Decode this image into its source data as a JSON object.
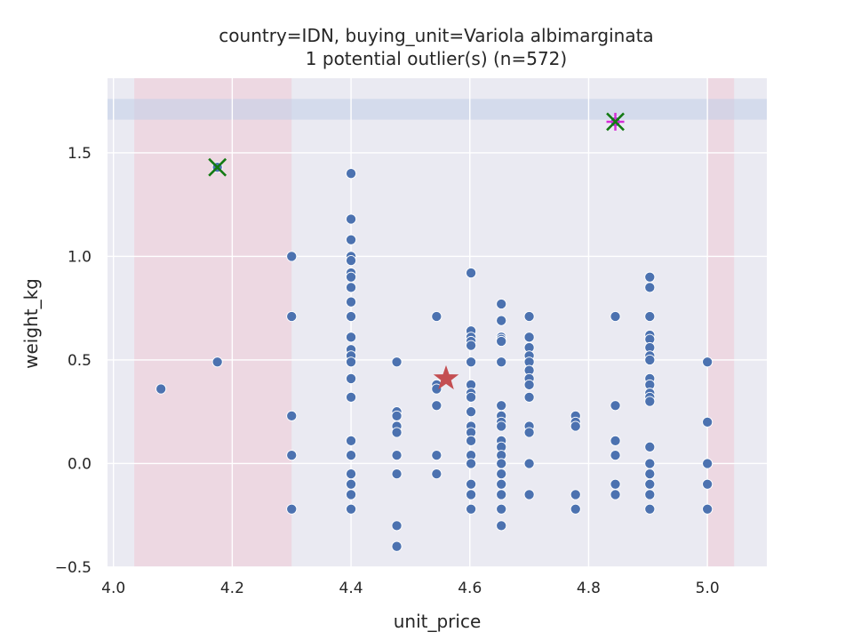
{
  "chart_data": {
    "type": "scatter",
    "title_line1": "country=IDN, buying_unit=Variola albimarginata",
    "title_line2": "1 potential outlier(s) (n=572)",
    "xlabel": "unit_price",
    "ylabel": "weight_kg",
    "xlim": [
      3.99,
      5.1
    ],
    "ylim": [
      -0.5,
      1.86
    ],
    "xticks": [
      "4.0",
      "4.2",
      "4.4",
      "4.6",
      "4.8",
      "5.0"
    ],
    "xtick_values": [
      4.0,
      4.2,
      4.4,
      4.6,
      4.8,
      5.0
    ],
    "yticks": [
      "−0.5",
      "0.0",
      "0.5",
      "1.0",
      "1.5"
    ],
    "ytick_values": [
      -0.5,
      0.0,
      0.5,
      1.0,
      1.5
    ],
    "grid": true,
    "background_color": "#eaeaf2",
    "point_color": "#4c72b0",
    "shaded_bands": {
      "vertical": [
        [
          4.035,
          4.3
        ],
        [
          5.0,
          5.045
        ]
      ],
      "horizontal": [
        [
          1.66,
          1.76
        ]
      ],
      "vertical_color": "#f2c4cf",
      "horizontal_color": "#c5d0e8"
    },
    "points": [
      [
        4.08,
        0.36
      ],
      [
        4.175,
        0.49
      ],
      [
        4.175,
        1.43
      ],
      [
        4.3,
        1.0
      ],
      [
        4.3,
        0.71
      ],
      [
        4.3,
        0.23
      ],
      [
        4.3,
        0.04
      ],
      [
        4.3,
        -0.22
      ],
      [
        4.4,
        1.4
      ],
      [
        4.4,
        1.18
      ],
      [
        4.4,
        1.08
      ],
      [
        4.4,
        1.0
      ],
      [
        4.4,
        0.98
      ],
      [
        4.4,
        0.92
      ],
      [
        4.4,
        0.9
      ],
      [
        4.4,
        0.85
      ],
      [
        4.4,
        0.78
      ],
      [
        4.4,
        0.71
      ],
      [
        4.4,
        0.61
      ],
      [
        4.4,
        0.55
      ],
      [
        4.4,
        0.52
      ],
      [
        4.4,
        0.49
      ],
      [
        4.4,
        0.41
      ],
      [
        4.4,
        0.32
      ],
      [
        4.4,
        0.11
      ],
      [
        4.4,
        0.04
      ],
      [
        4.4,
        -0.05
      ],
      [
        4.4,
        -0.1
      ],
      [
        4.4,
        -0.15
      ],
      [
        4.4,
        -0.22
      ],
      [
        4.477,
        0.49
      ],
      [
        4.477,
        0.25
      ],
      [
        4.477,
        0.23
      ],
      [
        4.477,
        0.18
      ],
      [
        4.477,
        0.15
      ],
      [
        4.477,
        0.04
      ],
      [
        4.477,
        -0.05
      ],
      [
        4.477,
        -0.3
      ],
      [
        4.477,
        -0.4
      ],
      [
        4.544,
        0.71
      ],
      [
        4.544,
        0.38
      ],
      [
        4.544,
        0.36
      ],
      [
        4.544,
        0.28
      ],
      [
        4.544,
        0.04
      ],
      [
        4.544,
        -0.05
      ],
      [
        4.602,
        0.92
      ],
      [
        4.602,
        0.64
      ],
      [
        4.602,
        0.61
      ],
      [
        4.602,
        0.59
      ],
      [
        4.602,
        0.57
      ],
      [
        4.602,
        0.49
      ],
      [
        4.602,
        0.38
      ],
      [
        4.602,
        0.34
      ],
      [
        4.602,
        0.32
      ],
      [
        4.602,
        0.25
      ],
      [
        4.602,
        0.18
      ],
      [
        4.602,
        0.15
      ],
      [
        4.602,
        0.11
      ],
      [
        4.602,
        0.04
      ],
      [
        4.602,
        0.0
      ],
      [
        4.602,
        -0.1
      ],
      [
        4.602,
        -0.15
      ],
      [
        4.602,
        -0.22
      ],
      [
        4.653,
        0.77
      ],
      [
        4.653,
        0.69
      ],
      [
        4.653,
        0.61
      ],
      [
        4.653,
        0.6
      ],
      [
        4.653,
        0.59
      ],
      [
        4.653,
        0.49
      ],
      [
        4.653,
        0.28
      ],
      [
        4.653,
        0.23
      ],
      [
        4.653,
        0.2
      ],
      [
        4.653,
        0.18
      ],
      [
        4.653,
        0.11
      ],
      [
        4.653,
        0.08
      ],
      [
        4.653,
        0.04
      ],
      [
        4.653,
        0.0
      ],
      [
        4.653,
        -0.05
      ],
      [
        4.653,
        -0.1
      ],
      [
        4.653,
        -0.15
      ],
      [
        4.653,
        -0.22
      ],
      [
        4.653,
        -0.3
      ],
      [
        4.7,
        0.71
      ],
      [
        4.7,
        0.61
      ],
      [
        4.7,
        0.56
      ],
      [
        4.7,
        0.52
      ],
      [
        4.7,
        0.49
      ],
      [
        4.7,
        0.45
      ],
      [
        4.7,
        0.41
      ],
      [
        4.7,
        0.38
      ],
      [
        4.7,
        0.32
      ],
      [
        4.7,
        0.18
      ],
      [
        4.7,
        0.15
      ],
      [
        4.7,
        0.0
      ],
      [
        4.7,
        -0.15
      ],
      [
        4.778,
        0.23
      ],
      [
        4.778,
        0.2
      ],
      [
        4.778,
        0.18
      ],
      [
        4.778,
        -0.15
      ],
      [
        4.778,
        -0.22
      ],
      [
        4.845,
        1.65
      ],
      [
        4.845,
        0.71
      ],
      [
        4.845,
        0.28
      ],
      [
        4.845,
        0.11
      ],
      [
        4.845,
        0.04
      ],
      [
        4.845,
        -0.1
      ],
      [
        4.845,
        -0.15
      ],
      [
        4.903,
        0.9
      ],
      [
        4.903,
        0.85
      ],
      [
        4.903,
        0.71
      ],
      [
        4.903,
        0.62
      ],
      [
        4.903,
        0.6
      ],
      [
        4.903,
        0.56
      ],
      [
        4.903,
        0.52
      ],
      [
        4.903,
        0.5
      ],
      [
        4.903,
        0.41
      ],
      [
        4.903,
        0.38
      ],
      [
        4.903,
        0.34
      ],
      [
        4.903,
        0.32
      ],
      [
        4.903,
        0.3
      ],
      [
        4.903,
        0.08
      ],
      [
        4.903,
        0.0
      ],
      [
        4.903,
        -0.05
      ],
      [
        4.903,
        -0.1
      ],
      [
        4.903,
        -0.15
      ],
      [
        4.903,
        -0.22
      ],
      [
        5.0,
        0.49
      ],
      [
        5.0,
        0.2
      ],
      [
        5.0,
        0.0
      ],
      [
        5.0,
        -0.1
      ],
      [
        5.0,
        -0.22
      ]
    ],
    "markers": {
      "star": {
        "x": 4.56,
        "y": 0.41,
        "color": "#c44e52"
      },
      "green_x": [
        [
          4.175,
          1.43
        ],
        [
          4.845,
          1.65
        ]
      ],
      "green_x_color": "#137a13",
      "magenta_cross": [
        4.845,
        1.65
      ],
      "magenta_color": "#d62dd6"
    }
  }
}
